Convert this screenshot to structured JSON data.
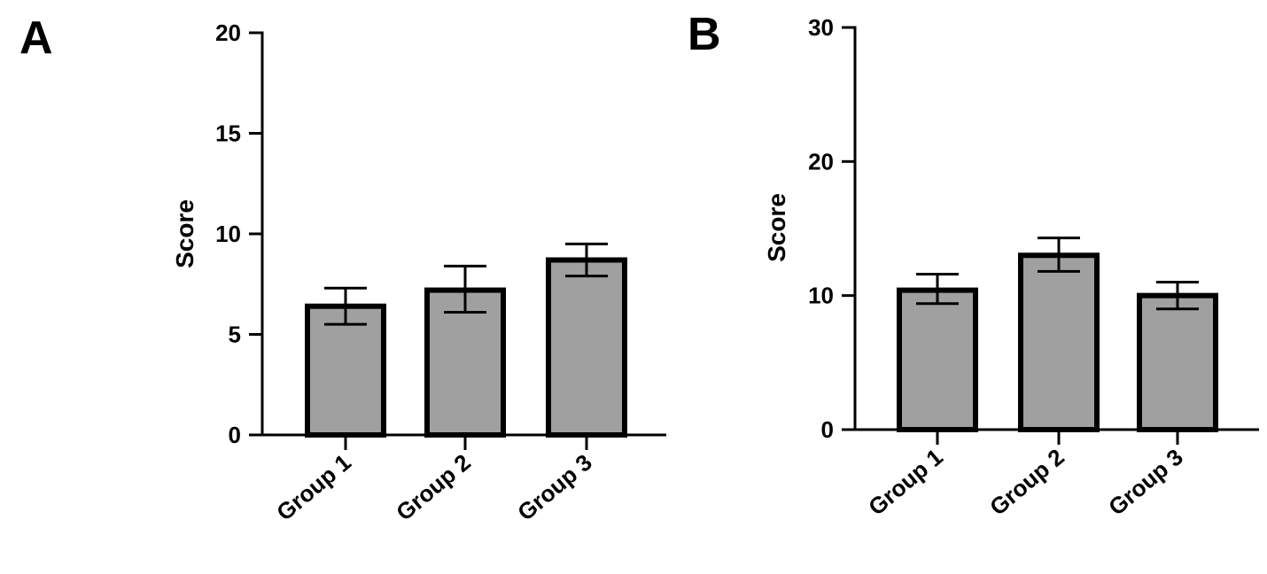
{
  "chart_data": [
    {
      "type": "bar",
      "panel_label": "A",
      "categories": [
        "Group 1",
        "Group 2",
        "Group 3"
      ],
      "values": [
        6.4,
        7.2,
        8.7
      ],
      "error_high": [
        7.3,
        8.4,
        9.5
      ],
      "error_low": [
        5.5,
        6.1,
        7.9
      ],
      "ylabel": "Score",
      "ylim": [
        0,
        20
      ],
      "yticks": [
        0,
        5,
        10,
        15,
        20
      ],
      "ytick_labels": [
        "0",
        "5",
        "10",
        "15",
        "20"
      ],
      "grid": false,
      "bar_color": "#a0a0a0",
      "edge_color": "#000000"
    },
    {
      "type": "bar",
      "panel_label": "B",
      "categories": [
        "Group 1",
        "Group 2",
        "Group 3"
      ],
      "values": [
        10.4,
        13.0,
        10.0
      ],
      "error_high": [
        11.6,
        14.3,
        11.0
      ],
      "error_low": [
        9.4,
        11.8,
        9.0
      ],
      "ylabel": "Score",
      "ylim": [
        0,
        30
      ],
      "yticks": [
        0,
        10,
        20,
        30
      ],
      "ytick_labels": [
        "0",
        "10",
        "20",
        "30"
      ],
      "grid": false,
      "bar_color": "#a0a0a0",
      "edge_color": "#000000"
    }
  ]
}
